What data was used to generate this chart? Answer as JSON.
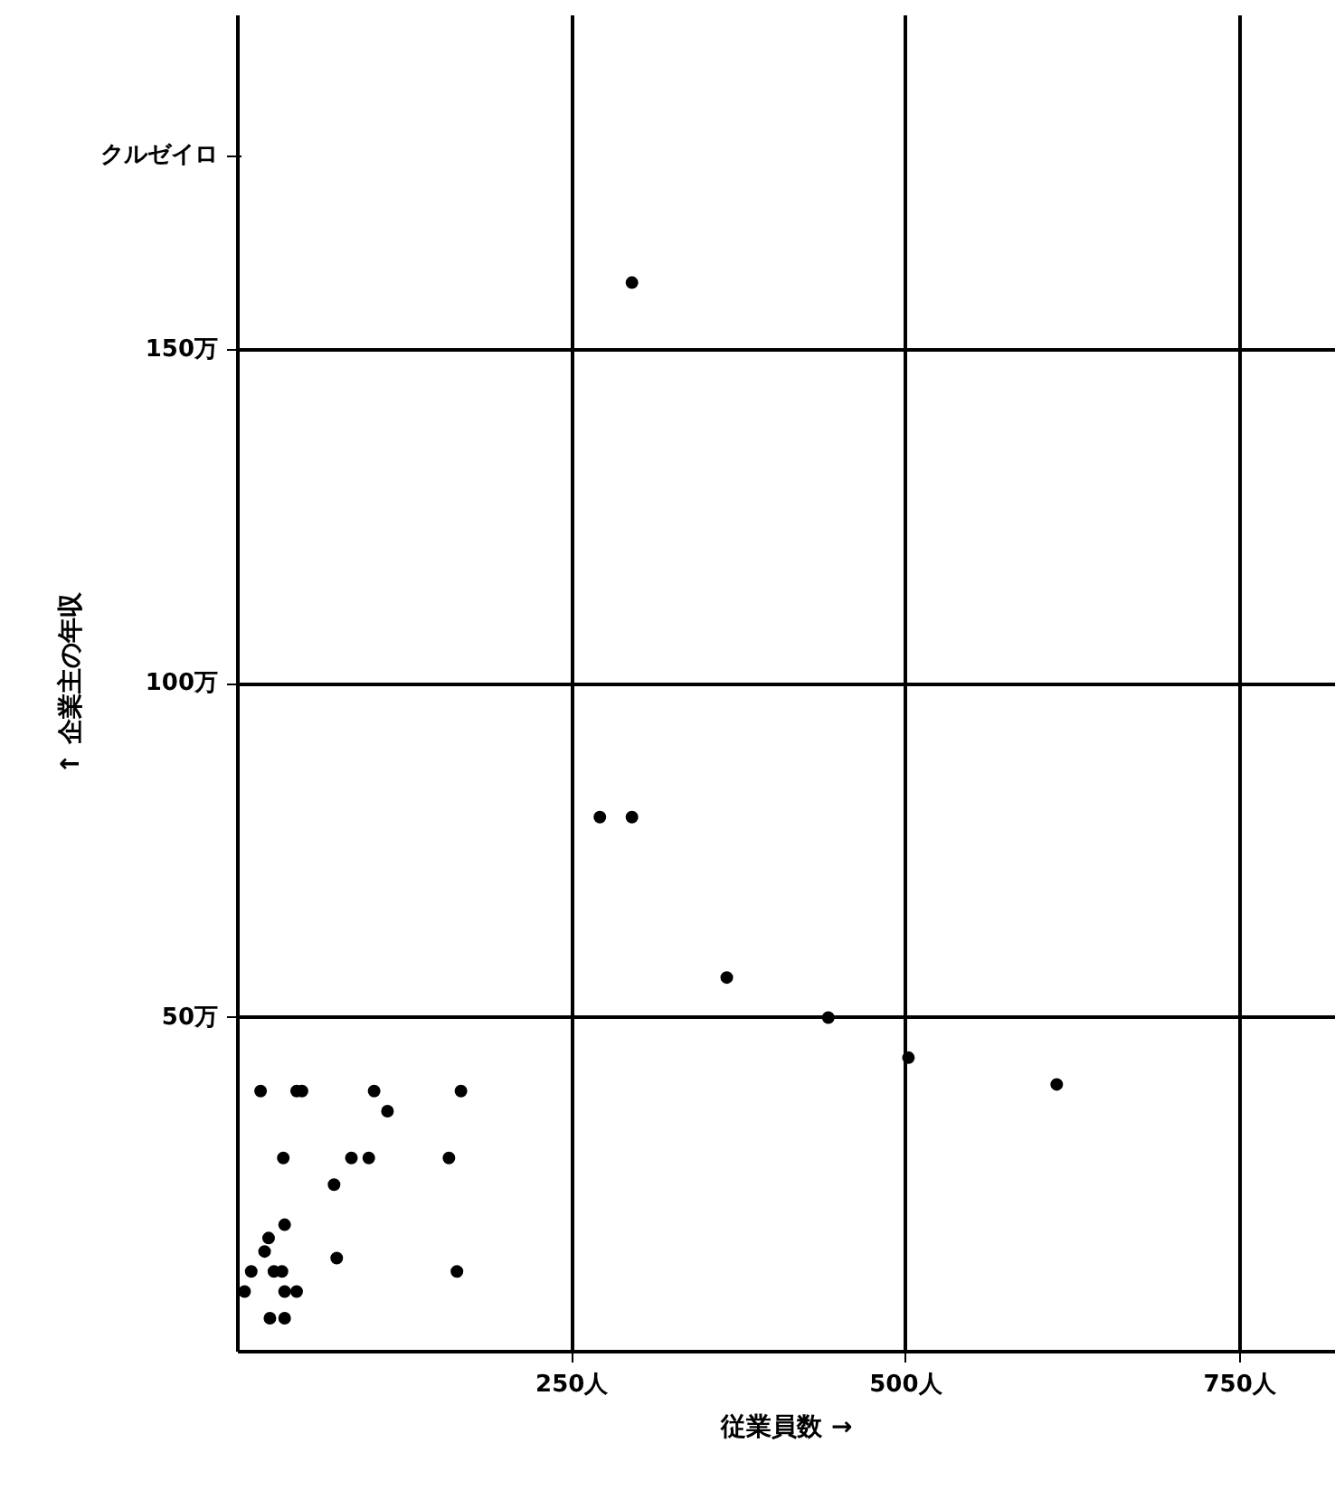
{
  "chart_data": {
    "type": "scatter",
    "xlabel": "従業員数 →",
    "ylabel": "↑ 企業主の年収",
    "annotations": [
      "クルゼイロ"
    ],
    "x": [
      17,
      44,
      48,
      102,
      167,
      112,
      34,
      85,
      98,
      158,
      72,
      35,
      23,
      20,
      74,
      10,
      27,
      33,
      164,
      5,
      35,
      44,
      24,
      35,
      271,
      295,
      366,
      442,
      502,
      295,
      613
    ],
    "values": [
      39,
      39,
      39,
      39,
      39,
      36,
      29,
      29,
      29,
      29,
      25,
      19,
      17,
      15,
      14,
      12,
      12,
      12,
      12,
      9,
      9,
      9,
      5,
      5,
      80,
      80,
      56,
      50,
      44,
      160,
      40
    ],
    "color": "#000000",
    "marker": "circle",
    "xlim": [
      0,
      822
    ],
    "ylim": [
      0,
      200
    ],
    "xticks": [
      {
        "value": 250,
        "label": "250人"
      },
      {
        "value": 500,
        "label": "500人"
      },
      {
        "value": 750,
        "label": "750人"
      }
    ],
    "yticks": [
      {
        "value": 50,
        "label": "50万"
      },
      {
        "value": 100,
        "label": "100万"
      },
      {
        "value": 150,
        "label": "150万"
      }
    ],
    "grid": true
  }
}
